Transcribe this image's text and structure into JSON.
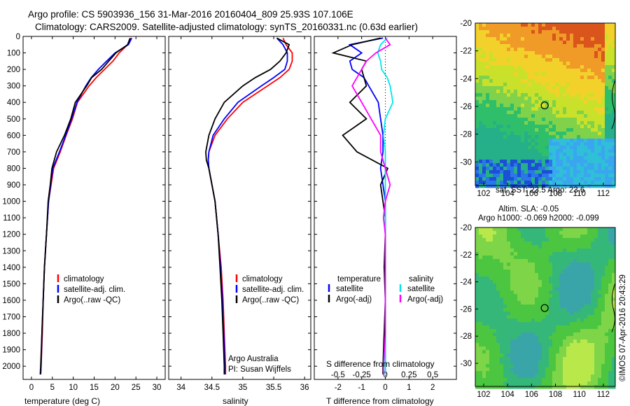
{
  "header": {
    "line1": "Argo profile: CS 5903936_156 31-Mar-2016 20160404_809 25.93S 107.106E",
    "line2": "Climatology: CARS2009. Satellite-adjusted climatology: synTS_20160331.nc (0.63d earlier)"
  },
  "colors": {
    "clim": "#ff0000",
    "sat": "#0000ff",
    "argo": "#000000",
    "sal_sat": "#00e5ee",
    "sal_argo": "#ff00ff"
  },
  "chart_data": [
    {
      "type": "line",
      "id": "temperature",
      "xlabel": "temperature (deg C)",
      "xlim": [
        -2,
        32
      ],
      "xticks": [
        0,
        5,
        10,
        15,
        20,
        25,
        30
      ],
      "ylim": [
        0,
        2080
      ],
      "yticks": [
        0,
        100,
        200,
        300,
        400,
        500,
        600,
        700,
        800,
        900,
        1000,
        1100,
        1200,
        1300,
        1400,
        1500,
        1600,
        1700,
        1800,
        1900,
        2000
      ],
      "legend": [
        "climatology",
        "satellite-adj. clim.",
        "Argo(..raw -QC)"
      ],
      "depth": [
        10,
        50,
        100,
        150,
        200,
        250,
        300,
        400,
        500,
        600,
        700,
        800,
        900,
        1000,
        1200,
        1400,
        1600,
        1800,
        2000,
        2050
      ],
      "series": [
        {
          "name": "climatology",
          "values": [
            23.8,
            23.0,
            21.0,
            19.5,
            17.5,
            15.5,
            13.8,
            11.0,
            9.8,
            8.3,
            6.9,
            5.3,
            4.7,
            4.1,
            3.6,
            3.1,
            2.8,
            2.6,
            2.3,
            2.2
          ]
        },
        {
          "name": "satellite-adj. clim.",
          "values": [
            24.0,
            23.2,
            20.0,
            18.0,
            16.0,
            14.3,
            13.0,
            10.9,
            9.6,
            8.2,
            6.7,
            5.1,
            4.6,
            4.1,
            3.6,
            3.1,
            2.8,
            2.5,
            2.3,
            2.2
          ]
        },
        {
          "name": "Argo(..raw -QC)",
          "values": [
            23.6,
            23.0,
            20.2,
            18.5,
            16.8,
            14.4,
            13.2,
            10.5,
            9.4,
            7.9,
            6.0,
            4.9,
            4.5,
            4.0,
            3.6,
            3.1,
            2.8,
            2.5,
            2.2,
            2.1
          ]
        }
      ]
    },
    {
      "type": "line",
      "id": "salinity",
      "xlabel": "salinity",
      "xlim": [
        33.8,
        36.1
      ],
      "xticks": [
        34,
        34.5,
        35,
        35.5,
        36
      ],
      "ylim": [
        0,
        2080
      ],
      "legend": [
        "climatology",
        "satellite-adj. clim.",
        "Argo(..raw -QC)"
      ],
      "annotation": [
        "Argo Australia",
        "PI: Susan Wijffels"
      ],
      "depth": [
        10,
        50,
        100,
        150,
        200,
        250,
        300,
        400,
        500,
        600,
        700,
        750,
        800,
        900,
        1000,
        1200,
        1400,
        1600,
        1800,
        2000,
        2050
      ],
      "series": [
        {
          "name": "climatology",
          "values": [
            35.65,
            35.7,
            35.8,
            35.8,
            35.75,
            35.6,
            35.4,
            35.0,
            34.75,
            34.55,
            34.45,
            34.44,
            34.45,
            34.5,
            34.55,
            34.6,
            34.65,
            34.68,
            34.7,
            34.72,
            34.72
          ]
        },
        {
          "name": "satellite-adj. clim.",
          "values": [
            35.55,
            35.65,
            35.72,
            35.72,
            35.68,
            35.5,
            35.3,
            34.92,
            34.7,
            34.52,
            34.45,
            34.44,
            34.45,
            34.5,
            34.55,
            34.6,
            34.64,
            34.67,
            34.69,
            34.71,
            34.71
          ]
        },
        {
          "name": "Argo(..raw -QC)",
          "values": [
            35.55,
            35.75,
            35.7,
            35.6,
            35.45,
            35.2,
            35.0,
            34.7,
            34.55,
            34.45,
            34.4,
            34.41,
            34.45,
            34.5,
            34.55,
            34.6,
            34.63,
            34.66,
            34.68,
            34.7,
            34.7
          ]
        }
      ]
    },
    {
      "type": "line",
      "id": "difference",
      "xlabel_top": "S difference from climatology",
      "xlabel": "T difference from climatology",
      "xlim": [
        -3,
        3
      ],
      "xticks": [
        -2,
        -1,
        0,
        1,
        2
      ],
      "xticks_top": [
        -0.5,
        -0.25,
        0,
        0.25,
        0.5
      ],
      "ylim": [
        0,
        2080
      ],
      "legend_temp_title": "temperature",
      "legend_sal_title": "salinity",
      "legend_labels": [
        "satellite",
        "Argo(-adj)"
      ],
      "depth": [
        10,
        50,
        100,
        150,
        200,
        250,
        300,
        400,
        500,
        600,
        700,
        800,
        900,
        1000,
        1100,
        1200,
        1400,
        1600,
        1800,
        2000,
        2050
      ],
      "series": [
        {
          "name": "T satellite",
          "values": [
            -0.1,
            -1.5,
            -1.0,
            -1.5,
            -1.4,
            -0.9,
            -0.7,
            -0.3,
            -0.2,
            -0.1,
            -0.1,
            -0.2,
            -0.1,
            0.0,
            0.0,
            0.0,
            0.0,
            0.0,
            0.0,
            0.0,
            0.0
          ]
        },
        {
          "name": "T Argo(-adj)",
          "values": [
            -0.2,
            -1.4,
            -2.2,
            -0.8,
            -1.0,
            -0.9,
            -0.8,
            -1.5,
            -0.8,
            -1.8,
            -1.2,
            0.1,
            -0.2,
            -0.1,
            0.0,
            0.0,
            -0.05,
            0.0,
            -0.05,
            -0.1,
            -0.1
          ]
        },
        {
          "name": "S satellite",
          "values": [
            0.02,
            -0.05,
            -0.08,
            -0.05,
            -0.04,
            0.02,
            0.05,
            0.08,
            0.0,
            -0.02,
            0.0,
            0.0,
            0.0,
            0.0,
            0.0,
            0.0,
            0.0,
            0.0,
            0.0,
            0.0,
            0.0
          ]
        },
        {
          "name": "S Argo(-adj)",
          "values": [
            0.0,
            0.05,
            -0.1,
            -0.2,
            -0.25,
            -0.3,
            -0.35,
            -0.25,
            -0.15,
            -0.05,
            -0.05,
            0.0,
            0.05,
            0.0,
            -0.02,
            0.0,
            0.0,
            0.0,
            0.0,
            -0.02,
            -0.02
          ]
        }
      ]
    },
    {
      "type": "heatmap",
      "id": "sst",
      "title": "sat. SST: 23.5 Argo: 23.6",
      "xticks": [
        102,
        104,
        106,
        108,
        110,
        112
      ],
      "yticks": [
        -20,
        -22,
        -24,
        -26,
        -28,
        -30
      ],
      "xlim": [
        101.3,
        113
      ],
      "ylim": [
        -31.7,
        -20
      ],
      "marker": {
        "lon": 107.1,
        "lat": -25.93
      }
    },
    {
      "type": "heatmap",
      "id": "sla",
      "title": "Altim. SLA: -0.05",
      "subtitle": "Argo h1000: -0.069 h2000: -0.099",
      "xticks": [
        102,
        104,
        106,
        108,
        110,
        112
      ],
      "yticks": [
        -20,
        -22,
        -24,
        -26,
        -28,
        -30
      ],
      "xlim": [
        101.3,
        113
      ],
      "ylim": [
        -31.7,
        -20
      ],
      "marker": {
        "lon": 107.1,
        "lat": -25.93
      }
    }
  ],
  "watermark": "©IMOS 07-Apr-2016 20:43:29"
}
